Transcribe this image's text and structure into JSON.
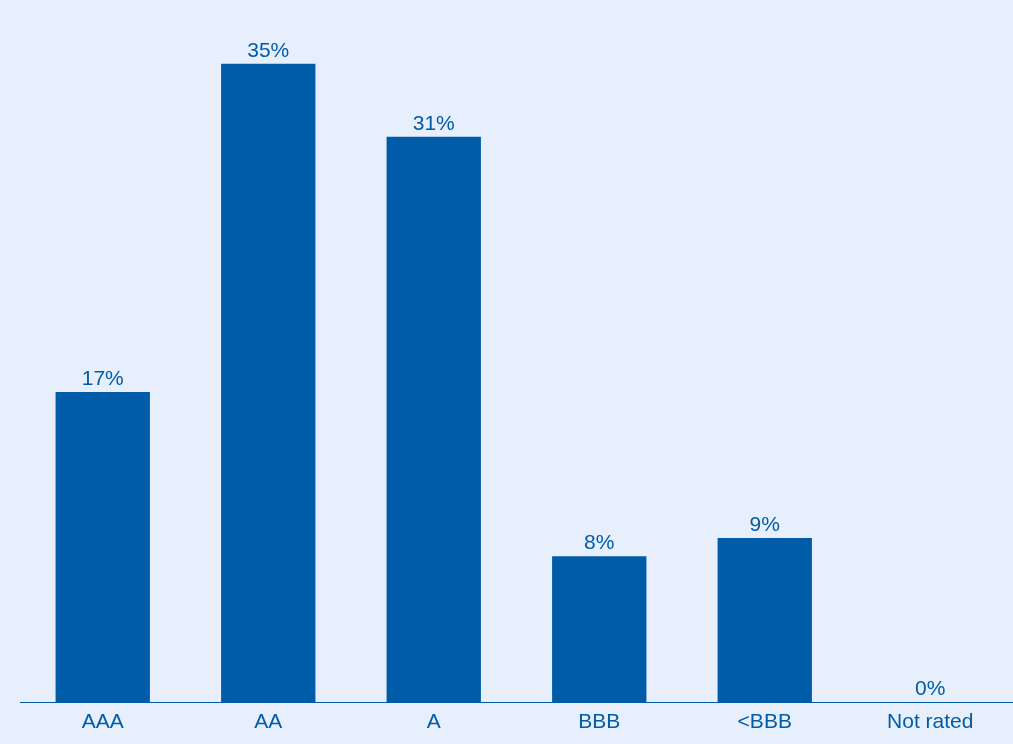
{
  "chart_data": {
    "type": "bar",
    "categories": [
      "AAA",
      "AA",
      "A",
      "BBB",
      "<BBB",
      "Not rated"
    ],
    "values": [
      17,
      35,
      31,
      8,
      9,
      0
    ],
    "value_labels": [
      "17%",
      "35%",
      "31%",
      "8%",
      "9%",
      "0%"
    ],
    "color": "#005ca9"
  }
}
